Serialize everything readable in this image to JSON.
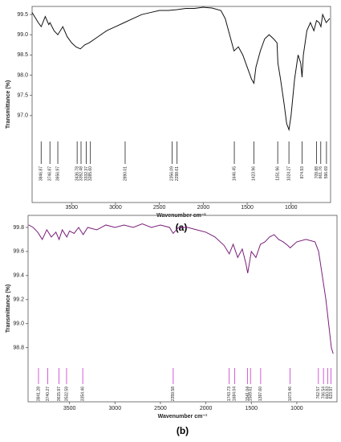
{
  "chart_data": [
    {
      "type": "line",
      "panel_label": "(a)",
      "ylabel": "Transmittance (%)",
      "xlabel": "Wavenumber cm⁻¹",
      "xlim": [
        3950,
        550
      ],
      "xticks": [
        3500,
        3000,
        2500,
        2000,
        1500,
        1000
      ],
      "ylim": [
        94.85,
        99.7
      ],
      "yticks": [
        {
          "value": 97,
          "label": "97.0"
        },
        97.5,
        {
          "value": 98,
          "label": "98.0"
        },
        98.5,
        {
          "value": 99,
          "label": "99.0"
        },
        99.5
      ],
      "color": "#111111",
      "peak_color": "#222222",
      "x": [
        3950,
        3880,
        3846,
        3800,
        3760,
        3746,
        3700,
        3657,
        3600,
        3550,
        3500,
        3450,
        3400,
        3350,
        3300,
        3200,
        3100,
        3000,
        2900,
        2800,
        2700,
        2600,
        2500,
        2400,
        2300,
        2200,
        2100,
        2000,
        1900,
        1800,
        1750,
        1700,
        1650,
        1600,
        1550,
        1500,
        1450,
        1423,
        1400,
        1350,
        1300,
        1250,
        1200,
        1160,
        1150,
        1120,
        1080,
        1050,
        1024,
        1000,
        960,
        920,
        890,
        875,
        860,
        820,
        780,
        740,
        710,
        680,
        660,
        640,
        600,
        560
      ],
      "values": [
        99.55,
        99.3,
        99.2,
        99.45,
        99.25,
        99.3,
        99.1,
        99.0,
        99.2,
        98.95,
        98.8,
        98.7,
        98.65,
        98.75,
        98.8,
        98.95,
        99.1,
        99.2,
        99.3,
        99.4,
        99.5,
        99.55,
        99.6,
        99.6,
        99.62,
        99.65,
        99.65,
        99.68,
        99.66,
        99.6,
        99.4,
        99.0,
        98.6,
        98.7,
        98.5,
        98.2,
        97.9,
        97.8,
        98.2,
        98.6,
        98.9,
        99.0,
        98.9,
        98.8,
        98.3,
        97.9,
        97.3,
        96.8,
        96.65,
        97.0,
        97.9,
        98.5,
        98.3,
        97.95,
        98.5,
        99.1,
        99.3,
        99.1,
        99.35,
        99.3,
        99.2,
        99.5,
        99.3,
        99.4
      ],
      "peaks": [
        3846.87,
        3746.87,
        3656.97,
        3436.78,
        3392.48,
        3332.37,
        {
          "value": 3285.6,
          "label": "3285.60"
        },
        2890.01,
        2356.09,
        2298.61,
        1646.45,
        1423.96,
        1151.96,
        1024.27,
        874.93,
        709.88,
        661.76,
        596.69
      ]
    },
    {
      "type": "line",
      "panel_label": "(b)",
      "ylabel": "Transmittance (%)",
      "xlabel": "Wavenumber cm⁻¹",
      "xlim": [
        3956,
        558
      ],
      "xticks": [
        3500,
        3000,
        2500,
        2000,
        1500,
        1000
      ],
      "ylim": [
        98.35,
        99.9
      ],
      "yticks": [
        {
          "value": 98.8,
          "label": "98.8"
        },
        {
          "value": 99,
          "label": "99.0"
        },
        99.2,
        99.4,
        99.6,
        99.8
      ],
      "color": "#7a1f7a",
      "peak_color": "#cc33cc",
      "x": [
        3950,
        3900,
        3850,
        3800,
        3750,
        3700,
        3650,
        3615,
        3580,
        3530,
        3500,
        3450,
        3400,
        3350,
        3300,
        3200,
        3100,
        3000,
        2900,
        2800,
        2700,
        2600,
        2500,
        2400,
        2360,
        2300,
        2200,
        2100,
        2000,
        1900,
        1800,
        1743,
        1700,
        1650,
        1600,
        1560,
        1540,
        1500,
        1450,
        1400,
        1350,
        1300,
        1250,
        1200,
        1150,
        1100,
        1073,
        1000,
        900,
        800,
        760,
        720,
        680,
        650,
        620,
        600
      ],
      "values": [
        99.82,
        99.8,
        99.76,
        99.7,
        99.78,
        99.72,
        99.76,
        99.7,
        99.78,
        99.72,
        99.77,
        99.75,
        99.8,
        99.74,
        99.8,
        99.78,
        99.82,
        99.8,
        99.82,
        99.8,
        99.83,
        99.8,
        99.82,
        99.8,
        99.75,
        99.8,
        99.8,
        99.78,
        99.76,
        99.72,
        99.65,
        99.58,
        99.66,
        99.55,
        99.62,
        99.5,
        99.42,
        99.6,
        99.55,
        99.66,
        99.68,
        99.72,
        99.74,
        99.7,
        99.68,
        99.65,
        99.63,
        99.68,
        99.7,
        99.68,
        99.6,
        99.4,
        99.2,
        99.0,
        98.8,
        98.75
      ],
      "peaks": [
        3841.28,
        3740.27,
        3615.97,
        3532.59,
        3354.46,
        2359.58,
        1743.73,
        1684.04,
        1541.04,
        1509.61,
        {
          "value": 1397.6,
          "label": "1397.60"
        },
        1073.46,
        762.57,
        706.54,
        660.83,
        623.97
      ]
    }
  ]
}
